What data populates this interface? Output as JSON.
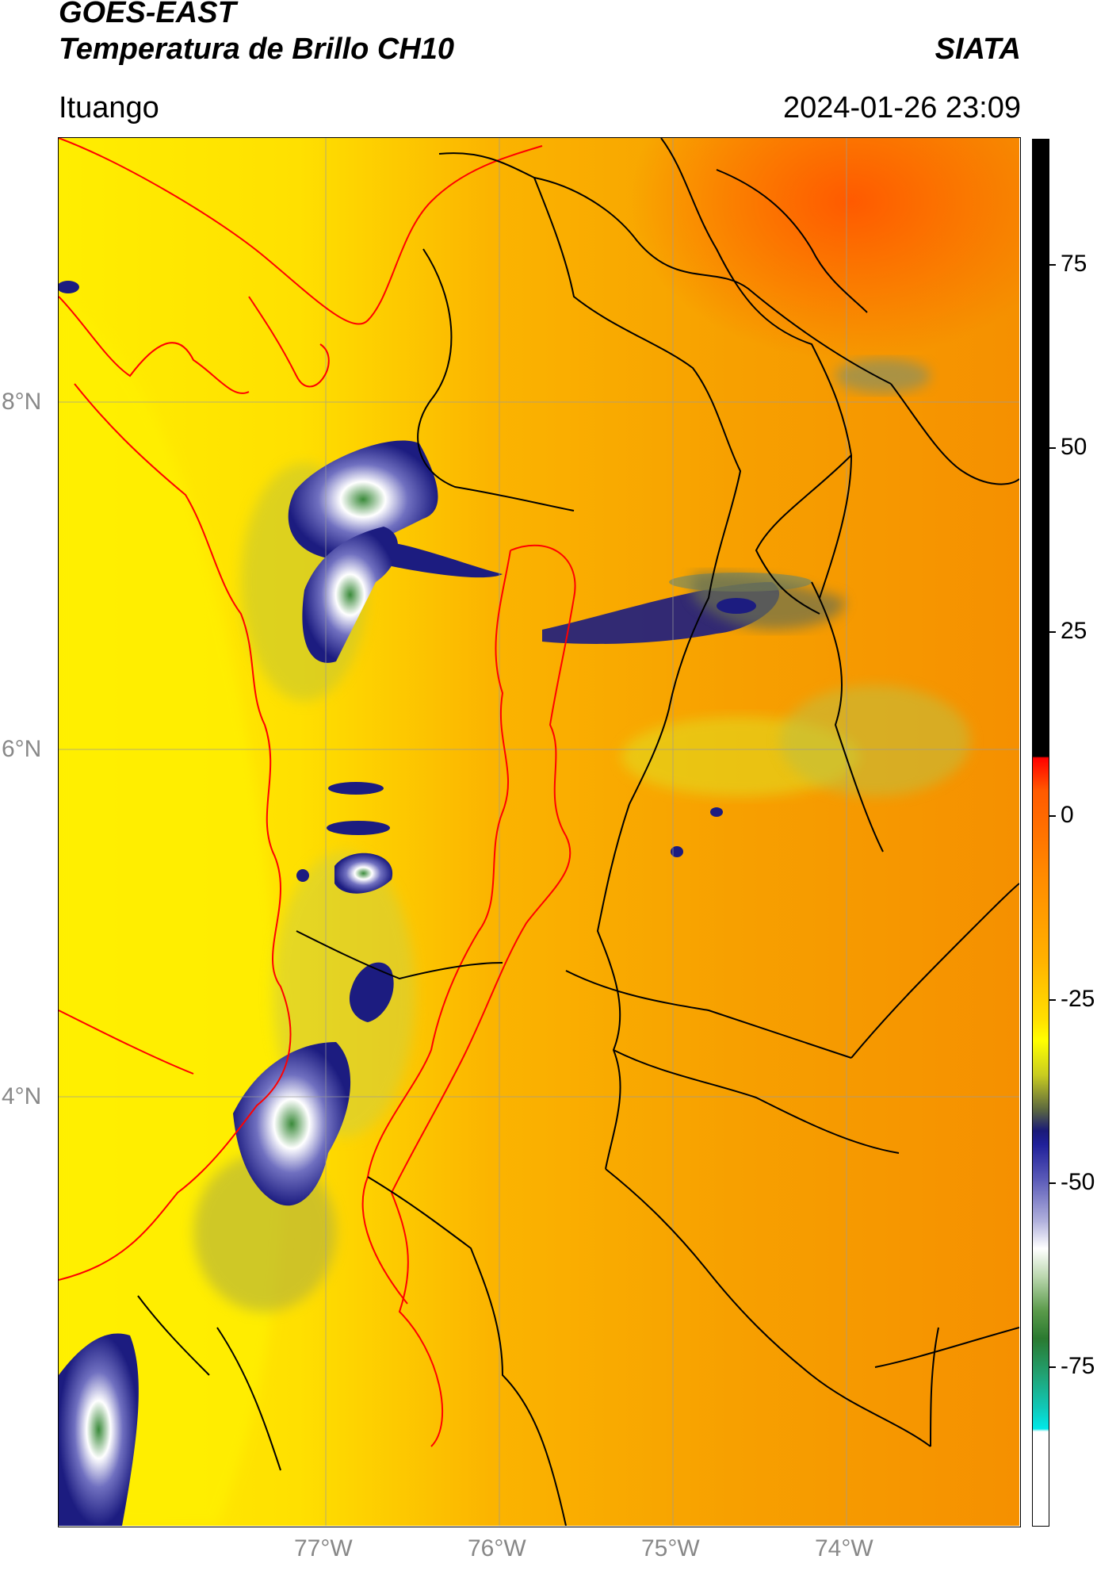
{
  "header": {
    "title_line1": "GOES-EAST",
    "title_line2": "Temperatura de Brillo CH10",
    "organization": "SIATA",
    "region": "Ituango",
    "datetime": "2024-01-26 23:09"
  },
  "map": {
    "lat_ticks": [
      "8°N",
      "6°N",
      "4°N"
    ],
    "lon_ticks": [
      "77°W",
      "76°W",
      "75°W",
      "74°W"
    ],
    "colors": {
      "warm": "#f7a000",
      "hot": "#ff6a00",
      "mild": "#ffe600",
      "cool": "#d8d820",
      "cold_blue": "#1c1c80",
      "very_cold": "#ffffff",
      "green": "#3a8a3a",
      "border_black": "#000000",
      "border_red": "#ff0000"
    }
  },
  "colorbar": {
    "ticks": [
      "75",
      "50",
      "25",
      "0",
      "-25",
      "-50",
      "-75"
    ],
    "range": [
      -92,
      92
    ]
  }
}
